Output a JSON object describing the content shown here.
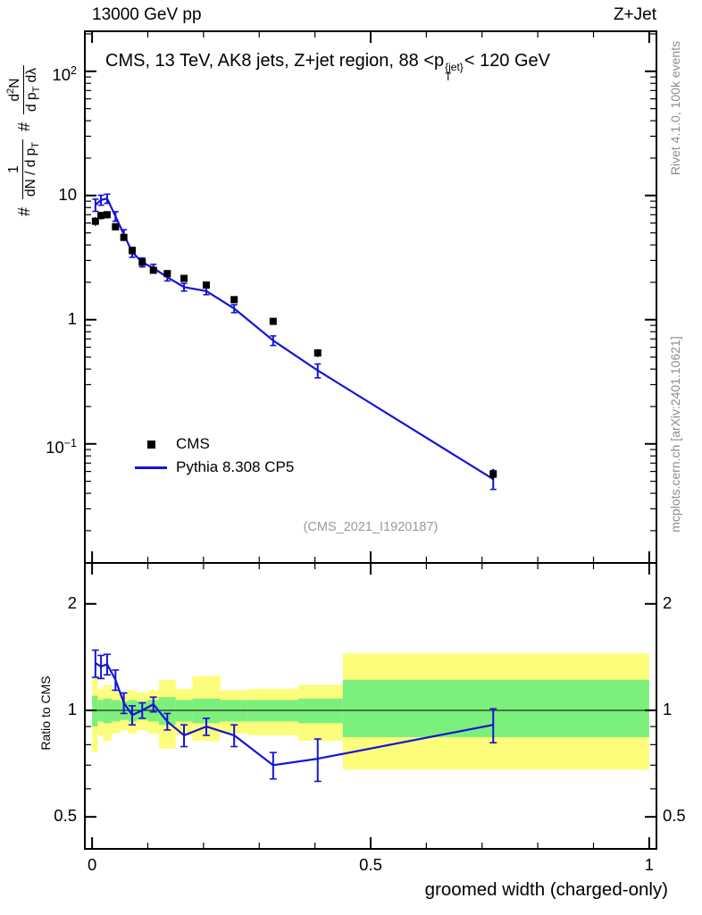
{
  "header": {
    "left": "13000 GeV pp",
    "right": "Z+Jet"
  },
  "watermarks": {
    "rivet": "Rivet 4.1.0, 100k events",
    "mcplots": "mcplots.cern.ch [arXiv:2401.10621]"
  },
  "title": {
    "a": "CMS, 13 TeV, AK8 jets, Z+jet region, 88 <p",
    "sup": "{jet}",
    "sub": "T",
    "b": "< 120 GeV"
  },
  "ref_label": "(CMS_2021_I1920187)",
  "axes": {
    "x_title": "groomed width (charged-only)",
    "ratio_y_title": "Ratio to CMS",
    "ylabel": {
      "hash1": "#",
      "f1num": "1",
      "f1den_a": "dN / d p",
      "f1den_sub": "T",
      "hash2": "#",
      "f2num_a": "d",
      "f2num_sup": "2",
      "f2num_b": "N",
      "f2den_a": "d p",
      "f2den_sub": "T",
      "f2den_b": " dλ"
    }
  },
  "legend": {
    "items": [
      {
        "label": "CMS"
      },
      {
        "label": "Pythia 8.308 CP5"
      }
    ]
  },
  "chart_data": {
    "type": "line",
    "title": "CMS, 13 TeV, AK8 jets, Z+jet region, 88 < pT{jet} < 120 GeV",
    "xlabel": "groomed width (charged-only)",
    "ylabel": "# 1/(dN/dpT) d2N/(dpT dλ)",
    "ratio_ylabel": "Ratio to CMS",
    "grid": false,
    "legend_position": "inside-left",
    "xlim": [
      -0.013,
      1.013
    ],
    "x_major_ticks": [
      0,
      0.5,
      1
    ],
    "x_major_tick_labels": [
      "0",
      "0.5",
      "1"
    ],
    "x_minor_tick_step": 0.1,
    "main_panel": {
      "ylog": true,
      "ylim": [
        0.011,
        210
      ],
      "y_major_ticks": [
        {
          "value": 100,
          "base": "10",
          "exp": "2"
        },
        {
          "value": 10,
          "base": "10",
          "exp": ""
        },
        {
          "value": 1,
          "base": "1",
          "exp": ""
        },
        {
          "value": 0.1,
          "base": "10",
          "exp": "−1"
        }
      ]
    },
    "ratio_panel": {
      "ylog": true,
      "ylim": [
        0.406,
        2.61
      ],
      "y_major_ticks": [
        {
          "value": 2,
          "label": "2"
        },
        {
          "value": 1,
          "label": "1"
        },
        {
          "value": 0.5,
          "label": "0.5"
        }
      ],
      "y_minor_ticks": [
        0.6,
        0.7,
        0.8,
        0.9
      ],
      "reference_line": 1
    },
    "x": [
      0.006,
      0.016,
      0.027,
      0.042,
      0.057,
      0.072,
      0.09,
      0.11,
      0.135,
      0.165,
      0.205,
      0.255,
      0.325,
      0.405,
      0.72
    ],
    "series": [
      {
        "name": "CMS",
        "style": "squares",
        "color": "#000000",
        "values": [
          6.2,
          6.9,
          7.0,
          5.6,
          4.6,
          3.6,
          2.9,
          2.5,
          2.35,
          2.15,
          1.9,
          1.45,
          0.97,
          0.54,
          0.057
        ],
        "yerr": [
          0.5,
          0.5,
          0.45,
          0.35,
          0.3,
          0.25,
          0.2,
          0.15,
          0.13,
          0.11,
          0.1,
          0.08,
          0.05,
          0.04,
          0.006
        ]
      },
      {
        "name": "Pythia 8.308 CP5",
        "style": "line",
        "color": "#1414d8",
        "values": [
          8.4,
          9.2,
          9.45,
          6.8,
          4.85,
          3.5,
          2.9,
          2.6,
          2.2,
          1.83,
          1.7,
          1.23,
          0.68,
          0.39,
          0.052
        ],
        "yerr": [
          0.95,
          0.85,
          0.8,
          0.6,
          0.45,
          0.32,
          0.24,
          0.19,
          0.15,
          0.13,
          0.11,
          0.09,
          0.06,
          0.05,
          0.009
        ]
      }
    ],
    "ratio": {
      "name": "Pythia 8.308 CP5 / CMS",
      "color": "#1414d8",
      "values": [
        1.36,
        1.33,
        1.35,
        1.22,
        1.05,
        0.97,
        1.0,
        1.04,
        0.93,
        0.85,
        0.9,
        0.85,
        0.7,
        0.73,
        0.91
      ],
      "yerr": [
        0.12,
        0.1,
        0.09,
        0.08,
        0.07,
        0.06,
        0.05,
        0.05,
        0.05,
        0.06,
        0.05,
        0.06,
        0.06,
        0.1,
        0.1
      ]
    },
    "bands": {
      "description": "CMS uncertainty bands in ratio panel",
      "colors": {
        "outer": "#fdfd7c",
        "inner": "#7cf07c"
      },
      "bin_edges": [
        0,
        0.01,
        0.02,
        0.035,
        0.05,
        0.065,
        0.08,
        0.1,
        0.12,
        0.15,
        0.18,
        0.23,
        0.28,
        0.37,
        0.45,
        1.0
      ],
      "outer_lo": [
        0.76,
        0.85,
        0.82,
        0.86,
        0.88,
        0.86,
        0.88,
        0.86,
        0.78,
        0.85,
        0.82,
        0.86,
        0.85,
        0.82,
        0.68
      ],
      "outer_hi": [
        1.24,
        1.15,
        1.18,
        1.14,
        1.12,
        1.14,
        1.12,
        1.14,
        1.22,
        1.15,
        1.25,
        1.14,
        1.15,
        1.18,
        1.45
      ],
      "inner_lo": [
        0.9,
        0.93,
        0.92,
        0.93,
        0.94,
        0.93,
        0.94,
        0.93,
        0.91,
        0.93,
        0.92,
        0.93,
        0.93,
        0.92,
        0.84
      ],
      "inner_hi": [
        1.1,
        1.07,
        1.08,
        1.07,
        1.06,
        1.07,
        1.06,
        1.07,
        1.09,
        1.07,
        1.08,
        1.07,
        1.07,
        1.08,
        1.22
      ]
    }
  }
}
